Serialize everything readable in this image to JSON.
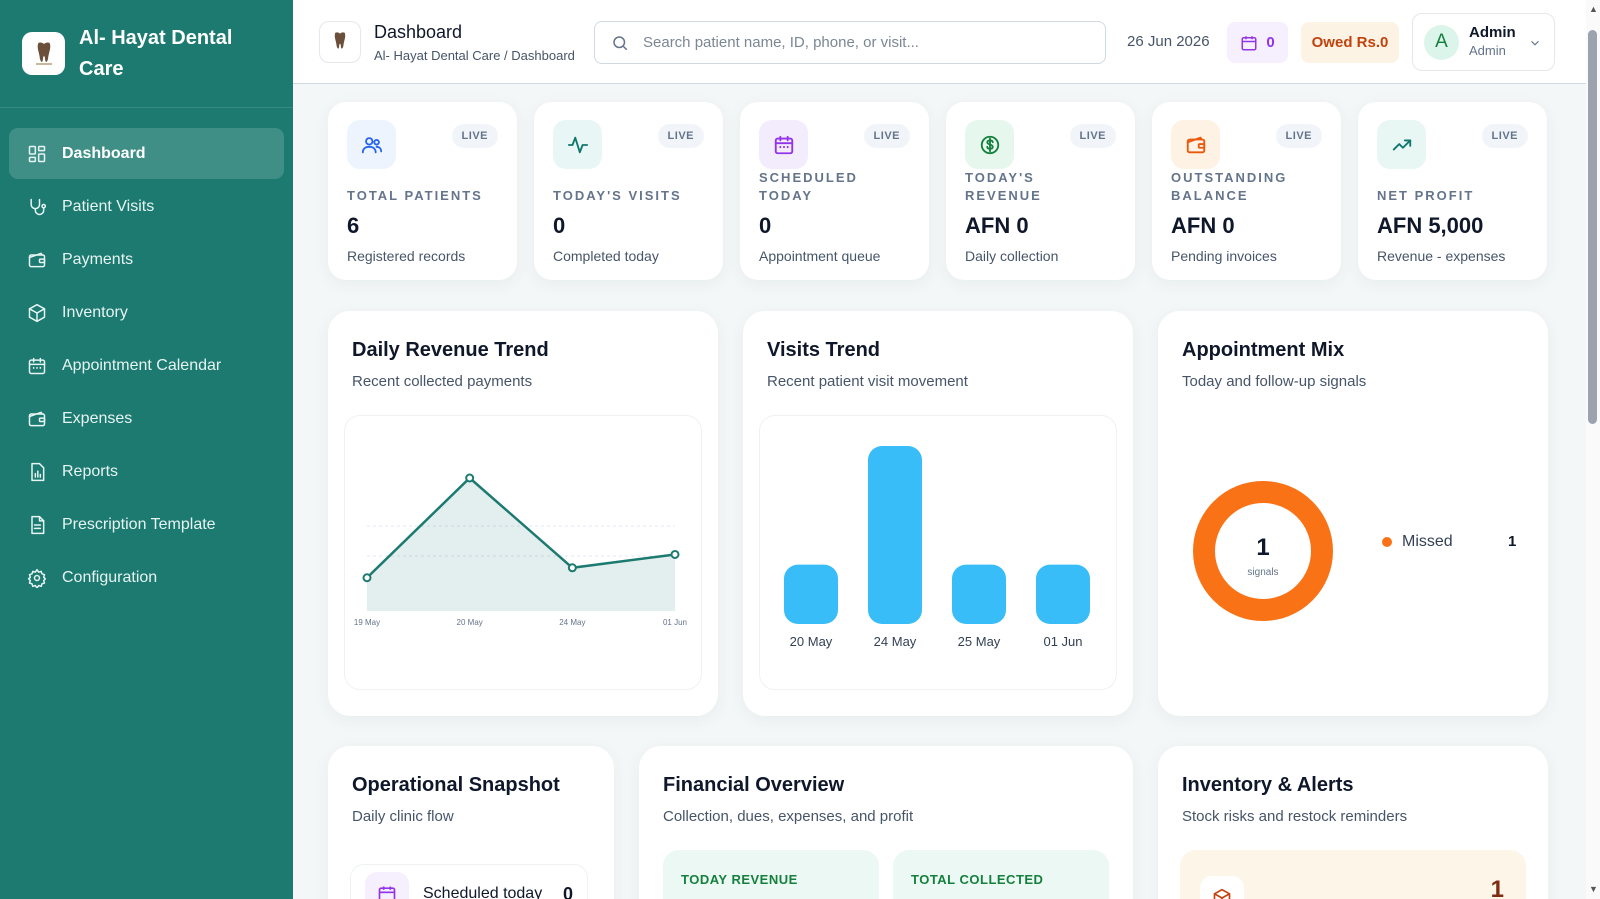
{
  "brand": {
    "name": "Al- Hayat Dental Care"
  },
  "sidebar": {
    "items": [
      {
        "label": "Dashboard",
        "icon": "dashboard-grid-icon",
        "active": true
      },
      {
        "label": "Patient Visits",
        "icon": "stethoscope-icon"
      },
      {
        "label": "Payments",
        "icon": "wallet-icon"
      },
      {
        "label": "Inventory",
        "icon": "package-icon"
      },
      {
        "label": "Appointment Calendar",
        "icon": "calendar-icon"
      },
      {
        "label": "Expenses",
        "icon": "wallet-icon"
      },
      {
        "label": "Reports",
        "icon": "report-chart-icon"
      },
      {
        "label": "Prescription Template",
        "icon": "document-icon"
      },
      {
        "label": "Configuration",
        "icon": "gear-icon"
      }
    ]
  },
  "header": {
    "title": "Dashboard",
    "breadcrumb": "Al- Hayat Dental Care / Dashboard",
    "search_placeholder": "Search patient name, ID, phone, or visit...",
    "date": "26 Jun 2026",
    "calendar_count": "0",
    "owed": "Owed Rs.0",
    "user": {
      "name": "Admin",
      "role": "Admin",
      "initial": "A"
    }
  },
  "kpis": [
    {
      "label": "Total Patients",
      "value": "6",
      "sub": "Registered records",
      "badge": "LIVE",
      "icon": "users-icon",
      "color": "#2563eb",
      "bg": "#eef4fd"
    },
    {
      "label": "Today's Visits",
      "value": "0",
      "sub": "Completed today",
      "badge": "LIVE",
      "icon": "activity-icon",
      "color": "#0f766e",
      "bg": "#e8f7f6"
    },
    {
      "label": "Scheduled Today",
      "value": "0",
      "sub": "Appointment queue",
      "badge": "LIVE",
      "icon": "calendar-icon",
      "color": "#9333ea",
      "bg": "#f3ecfd"
    },
    {
      "label": "Today's Revenue",
      "value": "AFN 0",
      "sub": "Daily collection",
      "badge": "LIVE",
      "icon": "dollar-icon",
      "color": "#15803d",
      "bg": "#e6f7ee"
    },
    {
      "label": "Outstanding Balance",
      "value": "AFN 0",
      "sub": "Pending invoices",
      "badge": "LIVE",
      "icon": "wallet-icon",
      "color": "#ea580c",
      "bg": "#fdf2e3"
    },
    {
      "label": "Net Profit",
      "value": "AFN 5,000",
      "sub": "Revenue - expenses",
      "badge": "LIVE",
      "icon": "trending-up-icon",
      "color": "#0f766e",
      "bg": "#e8f7f4"
    }
  ],
  "panels": {
    "revenue": {
      "title": "Daily Revenue Trend",
      "subtitle": "Recent collected payments"
    },
    "visits": {
      "title": "Visits Trend",
      "subtitle": "Recent patient visit movement"
    },
    "mix": {
      "title": "Appointment Mix",
      "subtitle": "Today and follow-up signals",
      "center_value": "1",
      "center_label": "signals",
      "legend_label": "Missed",
      "legend_value": "1"
    },
    "snapshot": {
      "title": "Operational Snapshot",
      "subtitle": "Daily clinic flow",
      "row_label": "Scheduled today",
      "row_value": "0"
    },
    "financial": {
      "title": "Financial Overview",
      "subtitle": "Collection, dues, expenses, and profit",
      "box1": "TODAY REVENUE",
      "box2": "TOTAL COLLECTED"
    },
    "inventory": {
      "title": "Inventory & Alerts",
      "subtitle": "Stock risks and restock reminders",
      "alert_value": "1"
    }
  },
  "chart_data": [
    {
      "type": "area",
      "title": "Daily Revenue Trend",
      "categories": [
        "19 May",
        "20 May",
        "24 May",
        "01 Jun"
      ],
      "values": [
        1,
        4,
        1.3,
        1.7
      ],
      "color": "#1c7a70"
    },
    {
      "type": "bar",
      "title": "Visits Trend",
      "categories": [
        "20 May",
        "24 May",
        "25 May",
        "01 Jun"
      ],
      "values": [
        1,
        3,
        1,
        1
      ],
      "color": "#38bdf8"
    },
    {
      "type": "pie",
      "title": "Appointment Mix",
      "categories": [
        "Missed"
      ],
      "values": [
        1
      ],
      "color": "#f97316"
    }
  ]
}
